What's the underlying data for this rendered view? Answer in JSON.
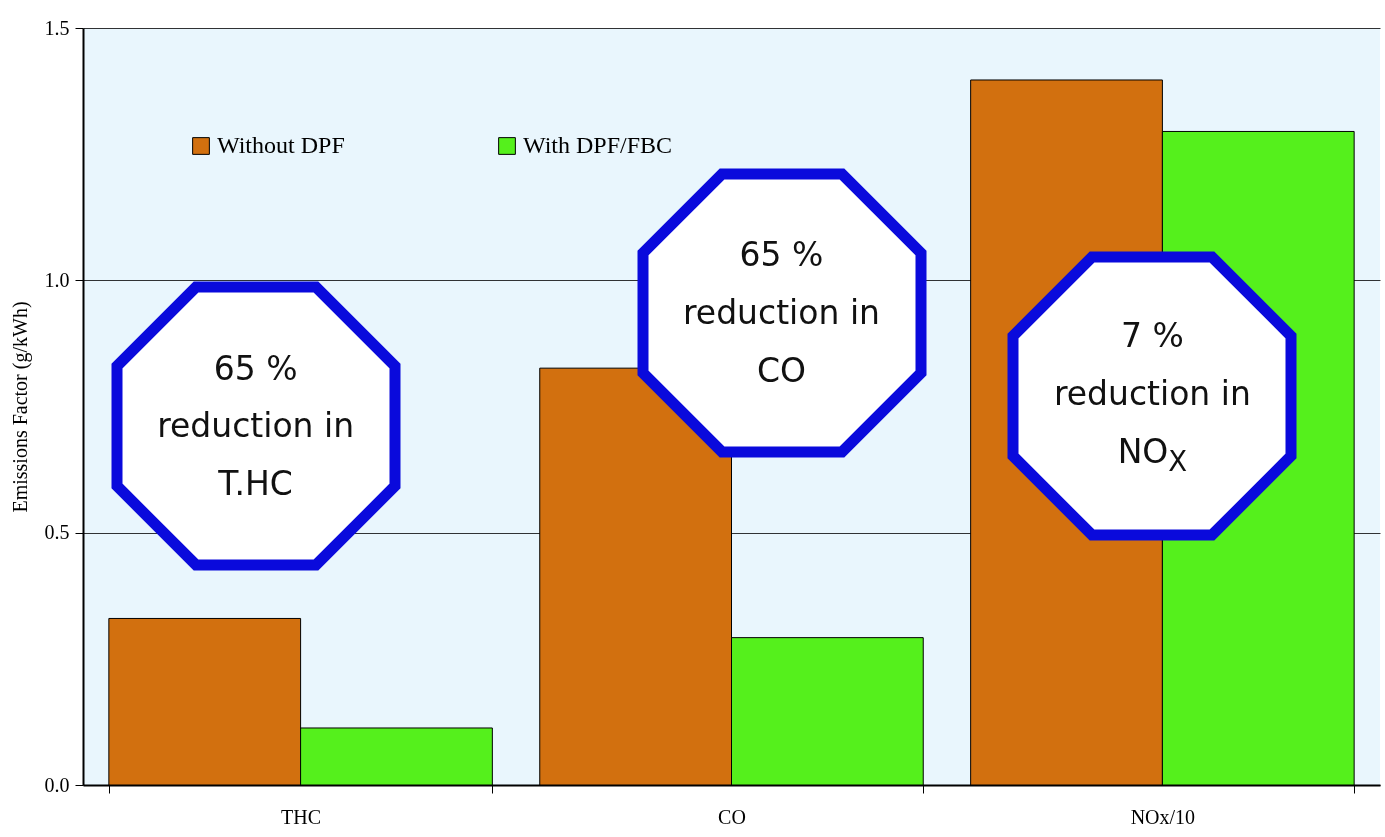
{
  "chart_data": {
    "type": "bar",
    "ylabel": "Emissions Factor (g/kWh)",
    "categories": [
      "THC",
      "CO",
      "NOx/10"
    ],
    "series": [
      {
        "name": "Without DPF",
        "color": "#d2700f",
        "values": [
          0.33,
          0.826,
          1.397
        ]
      },
      {
        "name": "With DPF/FBC",
        "color": "#55f01c",
        "values": [
          0.113,
          0.292,
          1.295
        ]
      }
    ],
    "ylim": [
      0,
      1.5
    ],
    "yticks": [
      {
        "value": 0,
        "label": "0.0"
      },
      {
        "value": 0.5,
        "label": "0.5"
      },
      {
        "value": 1,
        "label": "1.0"
      },
      {
        "value": 1.5,
        "label": "1.5"
      }
    ],
    "grid": "y",
    "legend": "top left",
    "annotations": [
      "65 %\nreduction in\nT.HC",
      "65 %\nreduction in\nCO",
      "7 %\nreduction in\nNO$_{X}$"
    ]
  }
}
